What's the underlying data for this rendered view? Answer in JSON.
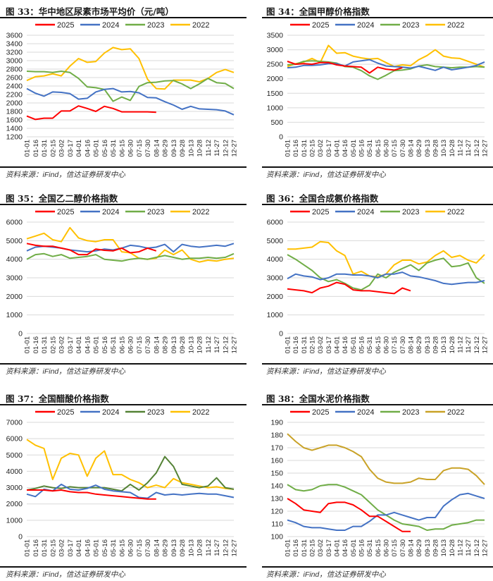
{
  "source_label": "资料来源：",
  "source_ifind": "iFind",
  "source_rest": "，信达证券研发中心",
  "chart_data": [
    {
      "id": "fig33",
      "type": "line",
      "title": "图 33：华中地区尿素市场平均价（元/吨）",
      "xlabel": "",
      "ylabel": "",
      "ylim": [
        1200,
        3600
      ],
      "yticks": [
        1200,
        1400,
        1600,
        1800,
        2000,
        2200,
        2400,
        2600,
        2800,
        3000,
        3200,
        3400,
        3600
      ],
      "grid": true,
      "legend": "top",
      "categories": [
        "01-01",
        "01-16",
        "01-31",
        "02-15",
        "03-02",
        "03-17",
        "04-01",
        "04-16",
        "05-01",
        "05-16",
        "05-31",
        "06-15",
        "06-30",
        "07-15",
        "07-30",
        "08-14",
        "08-29",
        "09-13",
        "09-28",
        "10-13",
        "10-28",
        "11-12",
        "11-27",
        "12-12",
        "12-27"
      ],
      "series": [
        {
          "name": "2025",
          "color": "#ff0000",
          "values": [
            1690,
            1610,
            1640,
            1640,
            1810,
            1810,
            1930,
            1870,
            1800,
            1920,
            1870,
            1790,
            1790,
            1790,
            1790,
            1780,
            null,
            null,
            null,
            null,
            null,
            null,
            null,
            null,
            null
          ]
        },
        {
          "name": "2024",
          "color": "#4472c4",
          "values": [
            2340,
            2230,
            2160,
            2260,
            2250,
            2220,
            2090,
            2110,
            2260,
            2320,
            2340,
            2260,
            2270,
            2240,
            2130,
            2120,
            2030,
            1950,
            1850,
            1920,
            1860,
            1850,
            1840,
            1810,
            1720
          ]
        },
        {
          "name": "2023",
          "color": "#70ad47",
          "values": [
            2750,
            2740,
            2740,
            2720,
            2750,
            2720,
            2580,
            2380,
            2360,
            2320,
            2040,
            2140,
            2060,
            2390,
            2480,
            2490,
            2520,
            2530,
            2450,
            2340,
            2450,
            2580,
            2480,
            2460,
            2340
          ]
        },
        {
          "name": "2022",
          "color": "#ffc000",
          "values": [
            2530,
            2620,
            2640,
            2690,
            2640,
            2870,
            3050,
            2960,
            2980,
            3180,
            3310,
            3260,
            3280,
            3050,
            2560,
            2340,
            2330,
            2540,
            2540,
            2540,
            2500,
            2580,
            2720,
            2790,
            2720
          ]
        }
      ]
    },
    {
      "id": "fig34",
      "type": "line",
      "title": "图 34：全国甲醇价格指数",
      "xlabel": "",
      "ylabel": "",
      "ylim": [
        0,
        3500
      ],
      "yticks": [
        0,
        500,
        1000,
        1500,
        2000,
        2500,
        3000,
        3500
      ],
      "grid": true,
      "legend": "top",
      "categories": [
        "01-01",
        "01-16",
        "01-31",
        "02-15",
        "03-02",
        "03-17",
        "04-01",
        "04-16",
        "05-01",
        "05-16",
        "05-31",
        "06-15",
        "06-30",
        "07-15",
        "07-30",
        "08-14",
        "08-29",
        "09-13",
        "09-28",
        "10-13",
        "10-28",
        "11-12",
        "11-27",
        "12-12",
        "12-27"
      ],
      "series": [
        {
          "name": "2025",
          "color": "#ff0000",
          "values": [
            2600,
            2500,
            2520,
            2500,
            2560,
            2560,
            2480,
            2440,
            2420,
            2400,
            2200,
            2400,
            2330,
            2300,
            2380,
            null,
            null,
            null,
            null,
            null,
            null,
            null,
            null,
            null,
            null
          ]
        },
        {
          "name": "2024",
          "color": "#4472c4",
          "values": [
            2380,
            2400,
            2460,
            2460,
            2480,
            2520,
            2520,
            2440,
            2580,
            2620,
            2660,
            2540,
            2440,
            2420,
            2400,
            2370,
            2430,
            2360,
            2290,
            2400,
            2310,
            2350,
            2400,
            2460,
            2580
          ]
        },
        {
          "name": "2023",
          "color": "#70ad47",
          "values": [
            2480,
            2500,
            2600,
            2620,
            2600,
            2580,
            2540,
            2420,
            2400,
            2280,
            2100,
            1980,
            2120,
            2280,
            2300,
            2340,
            2440,
            2480,
            2420,
            2400,
            2380,
            2400,
            2400,
            2420,
            2400
          ]
        },
        {
          "name": "2022",
          "color": "#ffc000",
          "values": [
            2420,
            2520,
            2580,
            2700,
            2560,
            3150,
            2880,
            2900,
            2780,
            2720,
            2680,
            2700,
            2560,
            2420,
            2480,
            2450,
            2660,
            2800,
            3000,
            2780,
            2720,
            2700,
            2600,
            2500,
            2400
          ]
        }
      ]
    },
    {
      "id": "fig35",
      "type": "line",
      "title": "图 35：全国乙二醇价格指数",
      "xlabel": "",
      "ylabel": "",
      "ylim": [
        0,
        6000
      ],
      "yticks": [
        0,
        1000,
        2000,
        3000,
        4000,
        5000,
        6000
      ],
      "grid": true,
      "legend": "top",
      "categories": [
        "01-01",
        "01-16",
        "01-31",
        "02-15",
        "03-02",
        "03-17",
        "04-01",
        "04-16",
        "05-01",
        "05-16",
        "05-31",
        "06-15",
        "06-30",
        "07-15",
        "07-30",
        "08-14",
        "08-29",
        "09-13",
        "09-28",
        "10-13",
        "10-28",
        "11-12",
        "11-27",
        "12-12",
        "12-27"
      ],
      "series": [
        {
          "name": "2025",
          "color": "#ff0000",
          "values": [
            4850,
            4750,
            4700,
            4700,
            4600,
            4500,
            4250,
            4250,
            4550,
            4480,
            4450,
            4600,
            4350,
            4400,
            4600,
            4450,
            null,
            null,
            null,
            null,
            null,
            null,
            null,
            null,
            null
          ]
        },
        {
          "name": "2024",
          "color": "#4472c4",
          "values": [
            4450,
            4650,
            4700,
            4650,
            4600,
            4500,
            4450,
            4400,
            4450,
            4550,
            4500,
            4600,
            4750,
            4700,
            4600,
            4650,
            4800,
            4400,
            4800,
            4700,
            4650,
            4700,
            4750,
            4700,
            4850
          ]
        },
        {
          "name": "2023",
          "color": "#70ad47",
          "values": [
            4000,
            4250,
            4300,
            4150,
            4250,
            4050,
            4100,
            4150,
            4250,
            4000,
            3950,
            3900,
            4000,
            4050,
            4000,
            4100,
            4200,
            4100,
            4000,
            4050,
            4050,
            4100,
            4050,
            4100,
            4300
          ]
        },
        {
          "name": "2022",
          "color": "#ffc000",
          "values": [
            5100,
            5250,
            5400,
            5050,
            4950,
            5700,
            5150,
            5000,
            4950,
            5050,
            5050,
            4400,
            4350,
            4050,
            4000,
            4050,
            4500,
            4250,
            4500,
            4000,
            3850,
            3950,
            3900,
            4000,
            4050
          ]
        }
      ]
    },
    {
      "id": "fig36",
      "type": "line",
      "title": "图 36：全国合成氨价格指数",
      "xlabel": "",
      "ylabel": "",
      "ylim": [
        0,
        6000
      ],
      "yticks": [
        0,
        1000,
        2000,
        3000,
        4000,
        5000,
        6000
      ],
      "grid": true,
      "legend": "top",
      "categories": [
        "01-01",
        "01-16",
        "01-31",
        "02-15",
        "03-02",
        "03-17",
        "04-01",
        "04-16",
        "05-01",
        "05-16",
        "05-31",
        "06-15",
        "06-30",
        "07-15",
        "07-30",
        "08-14",
        "08-29",
        "09-13",
        "09-28",
        "10-13",
        "10-28",
        "11-12",
        "11-27",
        "12-12",
        "12-27"
      ],
      "series": [
        {
          "name": "2025",
          "color": "#ff0000",
          "values": [
            2400,
            2350,
            2300,
            2200,
            2450,
            2550,
            2750,
            2650,
            2350,
            2300,
            2300,
            2250,
            2200,
            2150,
            2450,
            2300,
            null,
            null,
            null,
            null,
            null,
            null,
            null,
            null,
            null
          ]
        },
        {
          "name": "2024",
          "color": "#4472c4",
          "values": [
            2950,
            3200,
            3100,
            3050,
            2900,
            3000,
            3200,
            3200,
            3150,
            3150,
            3100,
            3000,
            3200,
            3200,
            3300,
            3100,
            3050,
            2950,
            2850,
            2700,
            2650,
            2700,
            2750,
            2750,
            2850
          ]
        },
        {
          "name": "2023",
          "color": "#70ad47",
          "values": [
            4250,
            4000,
            3700,
            3400,
            3000,
            2800,
            2900,
            2700,
            2450,
            2350,
            2600,
            3200,
            3000,
            3300,
            3500,
            3700,
            3400,
            3800,
            3950,
            4050,
            3600,
            3650,
            3800,
            3000,
            2700
          ]
        },
        {
          "name": "2022",
          "color": "#ffc000",
          "values": [
            4550,
            4550,
            4600,
            4650,
            4950,
            4900,
            4450,
            4200,
            3200,
            3350,
            3100,
            3050,
            3200,
            3700,
            3950,
            3950,
            3750,
            3850,
            4200,
            4450,
            4100,
            4200,
            3950,
            3800,
            4250
          ]
        }
      ]
    },
    {
      "id": "fig37",
      "type": "line",
      "title": "图 37：全国醋酸价格指数",
      "xlabel": "",
      "ylabel": "",
      "ylim": [
        0,
        7000
      ],
      "yticks": [
        0,
        1000,
        2000,
        3000,
        4000,
        5000,
        6000,
        7000
      ],
      "grid": true,
      "legend": "top",
      "categories": [
        "01-01",
        "01-16",
        "01-31",
        "02-15",
        "03-02",
        "03-17",
        "04-01",
        "04-16",
        "05-01",
        "05-16",
        "05-31",
        "06-15",
        "06-30",
        "07-15",
        "07-30",
        "08-14",
        "08-29",
        "09-13",
        "09-28",
        "10-13",
        "10-28",
        "11-12",
        "11-27",
        "12-12",
        "12-27"
      ],
      "series": [
        {
          "name": "2025",
          "color": "#ff0000",
          "values": [
            2850,
            2850,
            2850,
            2800,
            2850,
            2750,
            2700,
            2700,
            2600,
            2550,
            2500,
            2450,
            2400,
            2350,
            2300,
            2300,
            null,
            null,
            null,
            null,
            null,
            null,
            null,
            null,
            null
          ]
        },
        {
          "name": "2024",
          "color": "#4472c4",
          "values": [
            2600,
            2450,
            2900,
            2800,
            3200,
            2900,
            2850,
            2950,
            3150,
            2900,
            2800,
            2750,
            2700,
            2400,
            2350,
            2700,
            2550,
            2600,
            2550,
            2600,
            2650,
            2600,
            2600,
            2500,
            2400
          ]
        },
        {
          "name": "2023",
          "color": "#548235",
          "values": [
            2850,
            2950,
            3100,
            3000,
            2950,
            3050,
            3000,
            3000,
            3000,
            3000,
            2900,
            2800,
            3200,
            2850,
            3300,
            3900,
            4900,
            4300,
            3200,
            3100,
            3000,
            3100,
            3600,
            3000,
            2900
          ]
        },
        {
          "name": "2022",
          "color": "#ffc000",
          "values": [
            5950,
            5600,
            5400,
            3500,
            4800,
            5100,
            5000,
            3700,
            4800,
            5250,
            3800,
            3800,
            3500,
            3300,
            3000,
            3150,
            3000,
            3550,
            3300,
            3200,
            3100,
            3000,
            3050,
            2950,
            2900
          ]
        }
      ]
    },
    {
      "id": "fig38",
      "type": "line",
      "title": "图 38：全国水泥价格指数",
      "xlabel": "",
      "ylabel": "",
      "ylim": [
        100,
        190
      ],
      "yticks": [
        100,
        110,
        120,
        130,
        140,
        150,
        160,
        170,
        180,
        190
      ],
      "grid": true,
      "legend": "top",
      "categories": [
        "01-01",
        "01-16",
        "01-31",
        "02-15",
        "03-02",
        "03-17",
        "04-01",
        "04-16",
        "05-01",
        "05-16",
        "05-31",
        "06-15",
        "06-30",
        "07-15",
        "07-30",
        "08-14",
        "08-29",
        "09-13",
        "09-28",
        "10-13",
        "10-28",
        "11-12",
        "11-27",
        "12-12",
        "12-27"
      ],
      "series": [
        {
          "name": "2025",
          "color": "#ff0000",
          "values": [
            130,
            126,
            121,
            120,
            119,
            126,
            127,
            127,
            125,
            121,
            116,
            116,
            112,
            108,
            104,
            104,
            null,
            null,
            null,
            null,
            null,
            null,
            null,
            null,
            null
          ]
        },
        {
          "name": "2024",
          "color": "#4472c4",
          "values": [
            113,
            111,
            108,
            107,
            107,
            106,
            105,
            105,
            108,
            108,
            112,
            117,
            117,
            119,
            117,
            115,
            113,
            115,
            115,
            124,
            129,
            133,
            134,
            132,
            130
          ]
        },
        {
          "name": "2023",
          "color": "#70ad47",
          "values": [
            141,
            137,
            136,
            137,
            140,
            141,
            141,
            139,
            136,
            133,
            127,
            121,
            117,
            113,
            110,
            109,
            108,
            105,
            106,
            106,
            109,
            110,
            111,
            113,
            113
          ]
        },
        {
          "name": "2022",
          "color": "#c9a227",
          "values": [
            181,
            175,
            170,
            168,
            170,
            172,
            172,
            170,
            167,
            163,
            153,
            146,
            143,
            142,
            142,
            143,
            146,
            145,
            145,
            152,
            154,
            154,
            153,
            148,
            141
          ]
        }
      ]
    }
  ]
}
